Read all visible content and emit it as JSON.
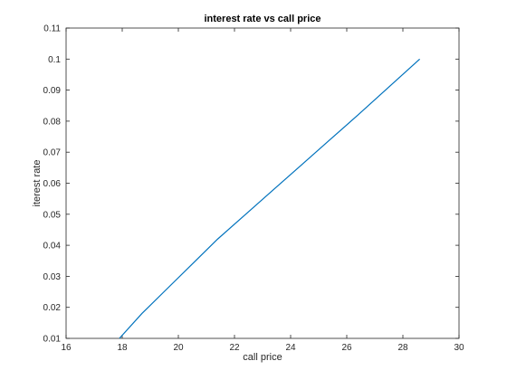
{
  "chart_data": {
    "type": "line",
    "title": "interest rate vs call price",
    "xlabel": "call price",
    "ylabel": "iterest rate",
    "xlim": [
      16,
      30
    ],
    "ylim": [
      0.01,
      0.11
    ],
    "xticks": [
      16,
      18,
      20,
      22,
      24,
      26,
      28,
      30
    ],
    "yticks": [
      0.01,
      0.02,
      0.03,
      0.04,
      0.05,
      0.06,
      0.07,
      0.08,
      0.09,
      0.1,
      0.11
    ],
    "xtick_labels": [
      "16",
      "18",
      "20",
      "22",
      "24",
      "26",
      "28",
      "30"
    ],
    "ytick_labels": [
      "0.01",
      "0.02",
      "0.03",
      "0.04",
      "0.05",
      "0.06",
      "0.07",
      "0.08",
      "0.09",
      "0.1",
      "0.11"
    ],
    "grid": false,
    "series": [
      {
        "color": "#0072bd",
        "x": [
          17.9,
          18.7,
          19.6,
          20.5,
          21.4,
          22.4,
          23.4,
          24.4,
          25.4,
          26.4,
          27.5,
          28.6
        ],
        "y": [
          0.01,
          0.018,
          0.026,
          0.034,
          0.042,
          0.05,
          0.058,
          0.066,
          0.074,
          0.082,
          0.091,
          0.1
        ]
      }
    ]
  }
}
